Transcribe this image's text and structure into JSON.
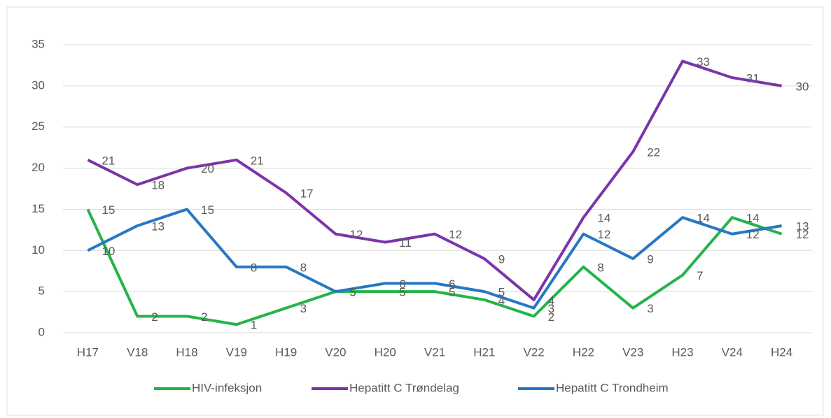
{
  "chart_data": {
    "type": "line",
    "categories": [
      "H17",
      "V18",
      "H18",
      "V19",
      "H19",
      "V20",
      "H20",
      "V21",
      "H21",
      "V22",
      "H22",
      "V23",
      "H23",
      "V24",
      "H24"
    ],
    "series": [
      {
        "name": "HIV-infeksjon",
        "color": "#25b34b",
        "values": [
          15,
          2,
          2,
          1,
          3,
          5,
          5,
          5,
          4,
          2,
          8,
          3,
          7,
          14,
          12
        ]
      },
      {
        "name": "Hepatitt C Trøndelag",
        "color": "#7b35a8",
        "values": [
          21,
          18,
          20,
          21,
          17,
          12,
          11,
          12,
          9,
          4,
          14,
          22,
          33,
          31,
          30
        ]
      },
      {
        "name": "Hepatitt C Trondheim",
        "color": "#2778c4",
        "values": [
          10,
          13,
          15,
          8,
          8,
          5,
          6,
          6,
          5,
          3,
          12,
          9,
          14,
          12,
          13
        ]
      }
    ],
    "ylim": [
      0,
      35
    ],
    "yticks": [
      0,
      5,
      10,
      15,
      20,
      25,
      30,
      35
    ],
    "grid": true,
    "legend": "bottom"
  }
}
